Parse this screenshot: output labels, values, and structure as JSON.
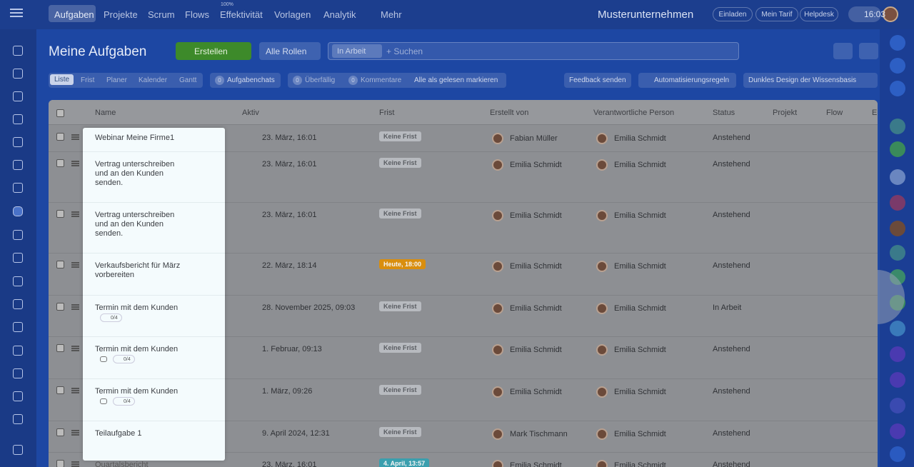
{
  "nav": {
    "items": [
      "Aufgaben",
      "Projekte",
      "Scrum",
      "Flows",
      "Effektivität",
      "Vorlagen",
      "Analytik",
      "Mehr"
    ],
    "badge": "100%",
    "company": "Musterunternehmen",
    "buttons": [
      "Einladen",
      "Mein Tarif",
      "Helpdesk"
    ],
    "time": "16:03"
  },
  "header": {
    "title": "Meine Aufgaben",
    "create": "Erstellen",
    "roles": "Alle Rollen",
    "filter": "In Arbeit",
    "search": "+ Suchen"
  },
  "toolbar": {
    "views": [
      "Liste",
      "Frist",
      "Planer",
      "Kalender",
      "Gantt"
    ],
    "chats": {
      "count": 0,
      "label": "Aufgabenchats"
    },
    "counters": [
      {
        "count": 0,
        "label": "Überfällig"
      },
      {
        "count": 0,
        "label": "Kommentare"
      }
    ],
    "mark_read": "Alle als gelesen markieren",
    "actions": [
      "Feedback senden",
      "Automatisierungsregeln",
      "Dunkles Design der Wissensbasis"
    ]
  },
  "table": {
    "columns": [
      "Name",
      "Aktiv",
      "Frist",
      "Erstellt von",
      "Verantwortliche Person",
      "Status",
      "Projekt",
      "Flow",
      "E"
    ],
    "rows": [
      {
        "name": "Webinar Meine Firme1",
        "active": "23. März, 16:01",
        "deadline": "Keine Frist",
        "deadline_color": "#b7babf",
        "created_by": "Fabian Müller",
        "responsible": "Emilia Schmidt",
        "status": "Anstehend"
      },
      {
        "name": "Vertrag unterschreiben und an den Kunden senden.",
        "active": "23. März, 16:01",
        "deadline": "Keine Frist",
        "deadline_color": "#b7babf",
        "created_by": "Emilia Schmidt",
        "responsible": "Emilia Schmidt",
        "status": "Anstehend"
      },
      {
        "name": "Vertrag unterschreiben und an den Kunden senden.",
        "active": "23. März, 16:01",
        "deadline": "Keine Frist",
        "deadline_color": "#b7babf",
        "created_by": "Emilia Schmidt",
        "responsible": "Emilia Schmidt",
        "status": "Anstehend"
      },
      {
        "name": "Verkaufsbericht für März vorbereiten",
        "active": "22. März, 18:14",
        "deadline": "Heute, 18:00",
        "deadline_color": "#d98e0e",
        "created_by": "Emilia Schmidt",
        "responsible": "Emilia Schmidt",
        "status": "Anstehend"
      },
      {
        "name": "Termin mit dem Kunden",
        "checklist": "0/4",
        "active": "28. November 2025, 09:03",
        "deadline": "Keine Frist",
        "deadline_color": "#b7babf",
        "created_by": "Emilia Schmidt",
        "responsible": "Emilia Schmidt",
        "status": "In Arbeit"
      },
      {
        "name": "Termin mit dem Kunden",
        "recurring": true,
        "checklist": "0/4",
        "active": "1. Februar, 09:13",
        "deadline": "Keine Frist",
        "deadline_color": "#b7babf",
        "created_by": "Emilia Schmidt",
        "responsible": "Emilia Schmidt",
        "status": "Anstehend"
      },
      {
        "name": "Termin mit dem Kunden",
        "recurring": true,
        "checklist": "0/4",
        "active": "1. März, 09:26",
        "deadline": "Keine Frist",
        "deadline_color": "#b7babf",
        "created_by": "Emilia Schmidt",
        "responsible": "Emilia Schmidt",
        "status": "Anstehend"
      },
      {
        "name": "Teilaufgabe 1",
        "active": "9. April 2024, 12:31",
        "deadline": "Keine Frist",
        "deadline_color": "#b7babf",
        "created_by": "Mark Tischmann",
        "responsible": "Emilia Schmidt",
        "status": "Anstehend"
      },
      {
        "name": "Quartalsbericht",
        "active": "23. März, 16:01",
        "deadline": "4. April, 13:57",
        "deadline_color": "#3a9fae",
        "created_by": "Emilia Schmidt",
        "responsible": "Emilia Schmidt",
        "status": "Anstehend"
      }
    ]
  }
}
